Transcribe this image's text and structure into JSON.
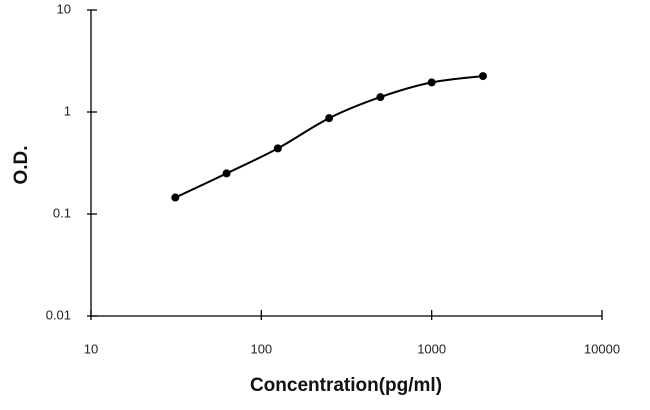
{
  "chart_data": {
    "type": "line",
    "x_label": "Concentration(pg/ml)",
    "y_label": "O.D.",
    "x": [
      31.25,
      62.5,
      125,
      250,
      500,
      1000,
      2000
    ],
    "series": [
      {
        "color": "#000000",
        "values": [
          0.145,
          0.25,
          0.44,
          0.87,
          1.4,
          1.95,
          2.25
        ]
      }
    ],
    "xlim": [
      10,
      10000
    ],
    "xticks": [
      10,
      100,
      1000,
      10000
    ],
    "ylim": [
      0.01,
      10
    ],
    "yticks": [
      0.01,
      0.1,
      1,
      10
    ],
    "xscale": "log",
    "yscale": "log",
    "grid": false
  }
}
